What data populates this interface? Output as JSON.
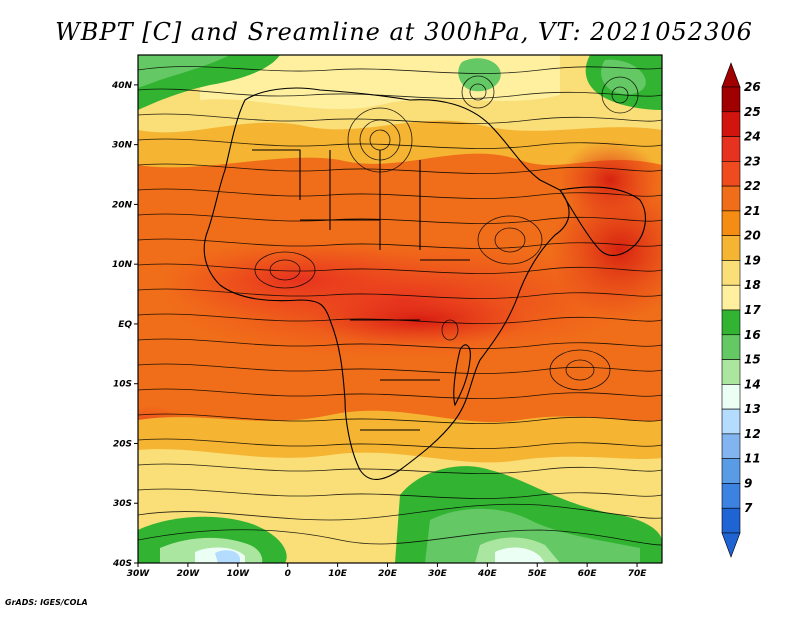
{
  "title": "WBPT [C] and Sreamline at 300hPa, VT: 2021052306",
  "credit": "GrADS: IGES/COLA",
  "map": {
    "projection": "lat-lon",
    "lon_range": [
      -30,
      75
    ],
    "lat_range": [
      -40,
      45
    ],
    "lat_ticks": [
      {
        "value": 40,
        "label": "40N"
      },
      {
        "value": 30,
        "label": "30N"
      },
      {
        "value": 20,
        "label": "20N"
      },
      {
        "value": 10,
        "label": "10N"
      },
      {
        "value": 0,
        "label": "EQ"
      },
      {
        "value": -10,
        "label": "10S"
      },
      {
        "value": -20,
        "label": "20S"
      },
      {
        "value": -30,
        "label": "30S"
      },
      {
        "value": -40,
        "label": "40S"
      }
    ],
    "lon_ticks": [
      {
        "value": -30,
        "label": "30W"
      },
      {
        "value": -20,
        "label": "20W"
      },
      {
        "value": -10,
        "label": "10W"
      },
      {
        "value": 0,
        "label": "0"
      },
      {
        "value": 10,
        "label": "10E"
      },
      {
        "value": 20,
        "label": "20E"
      },
      {
        "value": 30,
        "label": "30E"
      },
      {
        "value": 40,
        "label": "40E"
      },
      {
        "value": 50,
        "label": "50E"
      },
      {
        "value": 60,
        "label": "60E"
      },
      {
        "value": 70,
        "label": "70E"
      }
    ]
  },
  "colorbar": {
    "levels": [
      "26",
      "25",
      "24",
      "23",
      "22",
      "21",
      "20",
      "19",
      "18",
      "17",
      "16",
      "15",
      "14",
      "13",
      "12",
      "11",
      "9",
      "7"
    ],
    "colors": [
      "#a00000",
      "#d2140f",
      "#e6321e",
      "#f04b1e",
      "#f06e19",
      "#f58c14",
      "#f5b432",
      "#fade78",
      "#fff0a0",
      "#32b432",
      "#64c864",
      "#aae6a0",
      "#ebfff5",
      "#b4dcff",
      "#82b4f0",
      "#5a9be6",
      "#3c82e1",
      "#1e64d2"
    ],
    "min_triangle": "#1e64d2",
    "max_triangle": "#a00000"
  }
}
